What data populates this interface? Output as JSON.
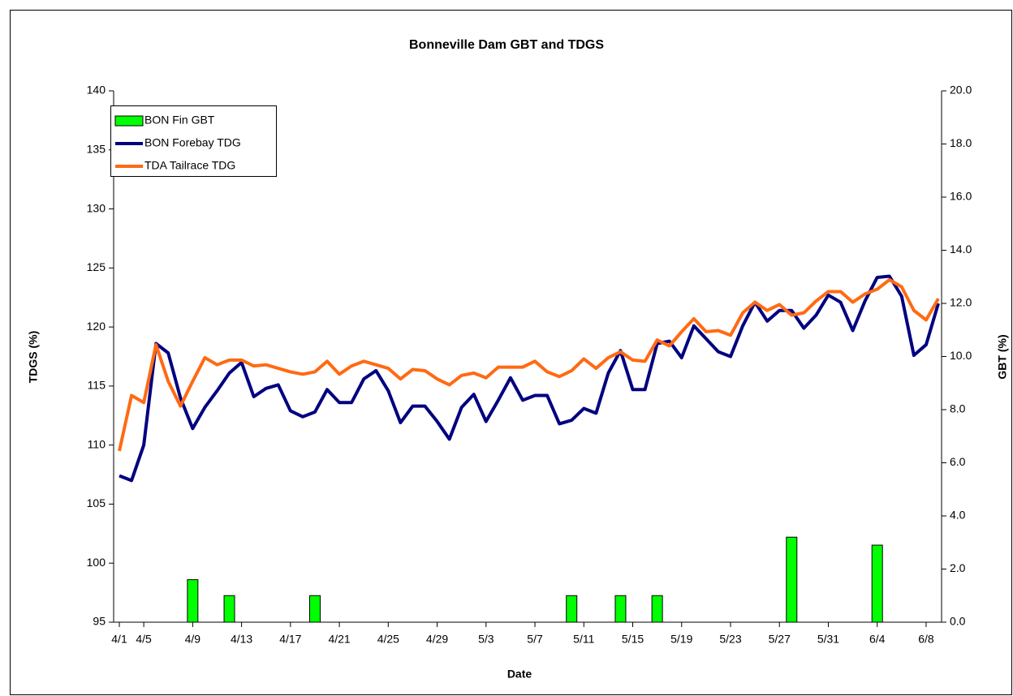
{
  "chart_data": {
    "type": "combo",
    "title": "Bonneville Dam GBT and TDGS",
    "x_label": "Date",
    "y_label": "TDGS (%)",
    "y2_label": "GBT (%)",
    "categories": [
      "4/1",
      null,
      "4/5",
      null,
      null,
      null,
      "4/9",
      null,
      null,
      null,
      "4/13",
      null,
      null,
      null,
      "4/17",
      null,
      null,
      null,
      "4/21",
      null,
      null,
      null,
      "4/25",
      null,
      null,
      null,
      "4/29",
      null,
      null,
      null,
      "5/3",
      null,
      null,
      null,
      "5/7",
      null,
      null,
      null,
      "5/11",
      null,
      null,
      null,
      "5/15",
      null,
      null,
      null,
      "5/19",
      null,
      null,
      null,
      "5/23",
      null,
      null,
      null,
      "5/27",
      null,
      null,
      null,
      "5/31",
      null,
      null,
      null,
      "6/4",
      null,
      null,
      null,
      "6/8",
      null
    ],
    "ylim": [
      95,
      140
    ],
    "yticks": [
      95,
      100,
      105,
      110,
      115,
      120,
      125,
      130,
      135,
      140
    ],
    "y2lim": [
      0,
      20
    ],
    "y2ticks": [
      {
        "value": 0,
        "label": "0.0"
      },
      {
        "value": 2,
        "label": "2.0"
      },
      {
        "value": 4,
        "label": "4.0"
      },
      {
        "value": 6,
        "label": "6.0"
      },
      {
        "value": 8,
        "label": "8.0"
      },
      {
        "value": 10,
        "label": "10.0"
      },
      {
        "value": 12,
        "label": "12.0"
      },
      {
        "value": 14,
        "label": "14.0"
      },
      {
        "value": 16,
        "label": "16.0"
      },
      {
        "value": 18,
        "label": "18.0"
      },
      {
        "value": 20,
        "label": "20.0"
      }
    ],
    "legend": "upper left",
    "series": [
      {
        "name": "BON Fin GBT",
        "kind": "bar",
        "axis": "y2",
        "color": "#00ff00",
        "values": [
          null,
          null,
          null,
          null,
          null,
          null,
          1.6,
          null,
          null,
          1.0,
          null,
          null,
          null,
          null,
          null,
          null,
          1.0,
          null,
          null,
          null,
          null,
          null,
          null,
          null,
          null,
          null,
          null,
          null,
          null,
          null,
          null,
          null,
          null,
          null,
          null,
          null,
          null,
          1.0,
          null,
          null,
          null,
          1.0,
          null,
          null,
          1.0,
          null,
          null,
          null,
          null,
          null,
          null,
          null,
          null,
          null,
          null,
          3.2,
          null,
          null,
          null,
          null,
          null,
          null,
          2.9,
          null,
          null,
          null,
          null,
          null
        ]
      },
      {
        "name": "BON Forebay TDG",
        "kind": "line",
        "color": "#000080",
        "values": [
          107.4,
          107.0,
          110.0,
          118.6,
          117.8,
          114.0,
          111.4,
          113.2,
          114.6,
          116.1,
          117.0,
          114.1,
          114.8,
          115.1,
          112.9,
          112.4,
          112.8,
          114.7,
          113.6,
          113.6,
          115.6,
          116.3,
          114.6,
          111.9,
          113.3,
          113.3,
          112.0,
          110.5,
          113.2,
          114.3,
          112.0,
          113.8,
          115.7,
          113.8,
          114.2,
          114.2,
          111.8,
          112.1,
          113.1,
          112.7,
          116.1,
          118.0,
          114.7,
          114.7,
          118.6,
          118.8,
          117.4,
          120.1,
          119.0,
          117.9,
          117.5,
          120.1,
          122.1,
          120.5,
          121.4,
          121.4,
          119.9,
          121.0,
          122.7,
          122.1,
          119.7,
          122.2,
          124.2,
          124.3,
          122.6,
          117.6,
          118.5,
          122.0
        ]
      },
      {
        "name": "TDA Tailrace TDG",
        "kind": "line",
        "color": "#ff6a13",
        "values": [
          109.5,
          114.2,
          113.6,
          118.5,
          115.4,
          113.3,
          115.4,
          117.4,
          116.8,
          117.2,
          117.2,
          116.7,
          116.8,
          116.5,
          116.2,
          116.0,
          116.2,
          117.1,
          116.0,
          116.7,
          117.1,
          116.8,
          116.5,
          115.6,
          116.4,
          116.3,
          115.6,
          115.1,
          115.9,
          116.1,
          115.7,
          116.6,
          116.6,
          116.6,
          117.1,
          116.2,
          115.8,
          116.3,
          117.3,
          116.5,
          117.4,
          117.9,
          117.2,
          117.1,
          118.9,
          118.4,
          119.6,
          120.7,
          119.6,
          119.7,
          119.3,
          121.2,
          122.1,
          121.4,
          121.9,
          121.0,
          121.2,
          122.2,
          123.0,
          123.0,
          122.1,
          122.8,
          123.2,
          124.0,
          123.4,
          121.4,
          120.6,
          122.4
        ]
      }
    ]
  }
}
